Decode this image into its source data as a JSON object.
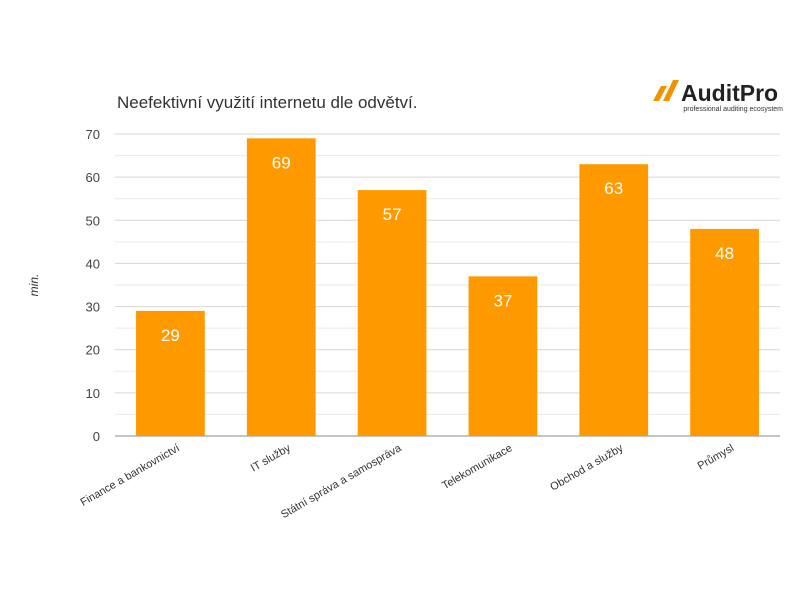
{
  "brand": {
    "name": "AuditPro",
    "tagline": "professional auditing ecosystem",
    "color": "#f39200"
  },
  "chart_data": {
    "type": "bar",
    "title": "Neefektivní využití internetu dle odvětví.",
    "ylabel": "min.",
    "xlabel": "",
    "categories": [
      "Finance a bankovnictví",
      "IT služby",
      "Státní správa a samospráva",
      "Telekomunikace",
      "Obchod a služby",
      "Průmysl"
    ],
    "values": [
      29,
      69,
      57,
      37,
      63,
      48
    ],
    "ylim": [
      0,
      70
    ],
    "yticks": [
      0,
      10,
      20,
      30,
      40,
      50,
      60,
      70
    ],
    "bar_color": "#ff9900",
    "grid": true,
    "data_labels": true
  }
}
